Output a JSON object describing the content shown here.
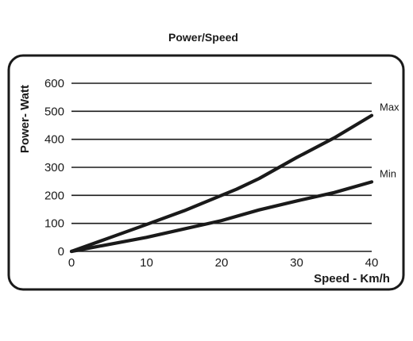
{
  "chart_data": {
    "type": "line",
    "title": "Power/Speed",
    "xlabel": "Speed - Km/h",
    "ylabel": "Power- Watt",
    "xlim": [
      0,
      40
    ],
    "ylim": [
      0,
      600
    ],
    "x_ticks": [
      "0",
      "10",
      "20",
      "30",
      "40"
    ],
    "y_ticks": [
      "0",
      "100",
      "200",
      "300",
      "400",
      "500",
      "600"
    ],
    "grid": "horizontal",
    "legend": "none",
    "series": [
      {
        "name": "Max",
        "x": [
          0,
          5,
          10,
          15,
          20,
          22,
          25,
          30,
          35,
          40
        ],
        "values": [
          0,
          48,
          96,
          145,
          200,
          222,
          260,
          335,
          405,
          485
        ]
      },
      {
        "name": "Min",
        "x": [
          0,
          5,
          10,
          15,
          20,
          25,
          30,
          35,
          40
        ],
        "values": [
          0,
          25,
          50,
          80,
          110,
          148,
          180,
          210,
          248
        ]
      }
    ],
    "colors": {
      "line": "#1a1a1a",
      "grid": "#1a1a1a",
      "frame": "#1a1a1a"
    }
  }
}
